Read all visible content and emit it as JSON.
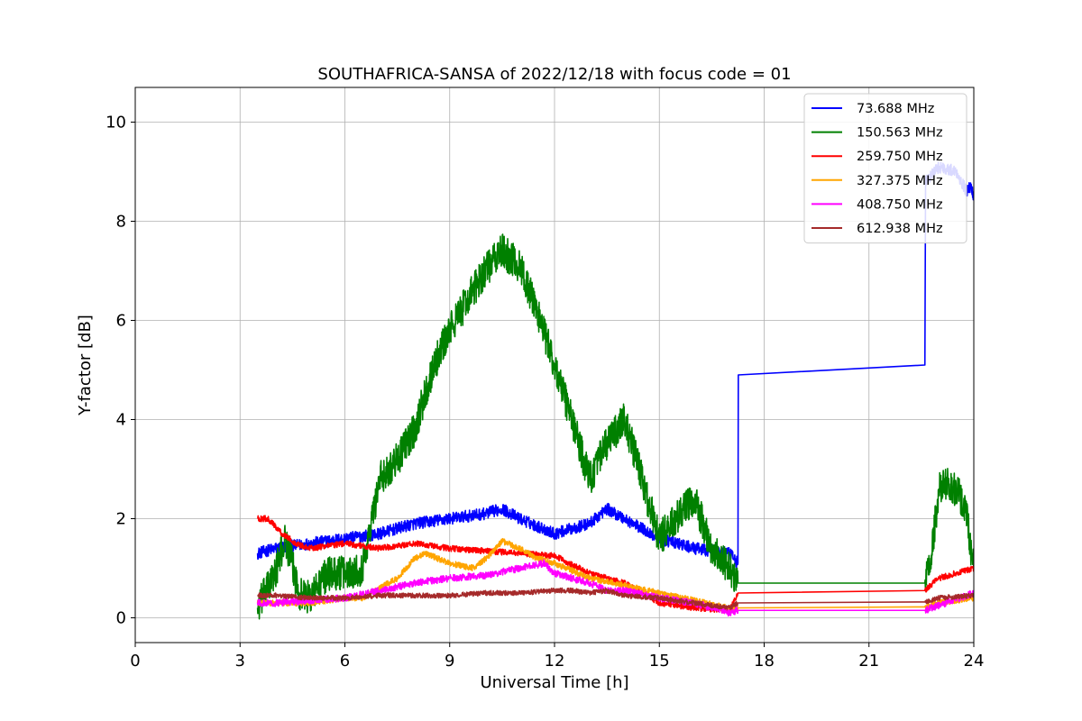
{
  "chart_data": {
    "type": "line",
    "title": "SOUTHAFRICA-SANSA of 2022/12/18 with focus code = 01",
    "xlabel": "Universal Time [h]",
    "ylabel": "Y-factor [dB]",
    "xlim": [
      0,
      24
    ],
    "ylim": [
      -0.5,
      10.7
    ],
    "xticks": [
      0,
      3,
      6,
      9,
      12,
      15,
      18,
      21,
      24
    ],
    "yticks": [
      0,
      2,
      4,
      6,
      8,
      10
    ],
    "grid": true,
    "legend_position": "top-right",
    "series": [
      {
        "name": " 73.688 MHz",
        "color": "#0000ff",
        "noise": 0.12,
        "x": [
          3.5,
          4.0,
          5.0,
          6.0,
          7.0,
          8.0,
          9.0,
          10.0,
          10.5,
          11.0,
          12.0,
          13.0,
          13.5,
          14.0,
          15.0,
          16.0,
          17.0,
          17.25,
          17.26,
          22.6,
          22.62,
          23.0,
          23.5,
          23.8,
          23.9,
          24.0
        ],
        "y": [
          1.3,
          1.4,
          1.5,
          1.6,
          1.7,
          1.9,
          2.0,
          2.1,
          2.2,
          2.0,
          1.7,
          1.9,
          2.2,
          2.0,
          1.6,
          1.4,
          1.3,
          1.1,
          4.9,
          5.1,
          8.8,
          9.1,
          9.0,
          8.6,
          8.7,
          8.5
        ]
      },
      {
        "name": "150.563 MHz",
        "color": "#008000",
        "noise": 0.35,
        "x": [
          3.5,
          4.0,
          4.3,
          4.7,
          5.0,
          5.5,
          6.0,
          6.5,
          7.0,
          7.5,
          8.0,
          8.5,
          9.0,
          9.5,
          10.0,
          10.5,
          11.0,
          11.5,
          12.0,
          12.5,
          13.0,
          13.5,
          14.0,
          14.3,
          14.7,
          15.0,
          15.5,
          16.0,
          16.5,
          17.0,
          17.25,
          22.6,
          22.8,
          23.0,
          23.3,
          23.6,
          23.8,
          24.0
        ],
        "y": [
          0.2,
          0.9,
          1.6,
          0.5,
          0.4,
          0.9,
          0.9,
          1.0,
          2.8,
          3.2,
          3.8,
          5.0,
          5.8,
          6.4,
          7.0,
          7.4,
          7.1,
          6.2,
          5.1,
          4.0,
          2.8,
          3.5,
          4.0,
          3.3,
          2.3,
          1.6,
          2.0,
          2.4,
          1.4,
          1.0,
          0.7,
          0.7,
          1.3,
          2.6,
          2.7,
          2.5,
          2.0,
          1.0
        ]
      },
      {
        "name": "259.750 MHz",
        "color": "#ff0000",
        "noise": 0.06,
        "x": [
          3.5,
          3.8,
          4.2,
          4.6,
          5.0,
          6.0,
          7.0,
          8.0,
          9.0,
          10.0,
          11.0,
          12.0,
          13.0,
          14.0,
          15.0,
          16.0,
          17.0,
          17.25,
          22.6,
          23.0,
          23.5,
          24.0
        ],
        "y": [
          2.0,
          2.0,
          1.7,
          1.5,
          1.4,
          1.5,
          1.4,
          1.5,
          1.4,
          1.35,
          1.3,
          1.25,
          0.9,
          0.7,
          0.3,
          0.2,
          0.15,
          0.5,
          0.55,
          0.8,
          0.9,
          1.0
        ]
      },
      {
        "name": "327.375 MHz",
        "color": "#ffa500",
        "noise": 0.06,
        "x": [
          3.5,
          4.0,
          5.0,
          6.0,
          6.5,
          7.0,
          7.5,
          8.0,
          8.3,
          9.0,
          9.7,
          10.2,
          10.5,
          11.0,
          11.5,
          12.0,
          13.0,
          14.0,
          15.0,
          16.0,
          17.0,
          17.25,
          22.6,
          23.0,
          24.0
        ],
        "y": [
          0.3,
          0.3,
          0.3,
          0.4,
          0.4,
          0.6,
          0.8,
          1.2,
          1.3,
          1.1,
          1.0,
          1.3,
          1.55,
          1.4,
          1.2,
          1.1,
          0.8,
          0.65,
          0.5,
          0.35,
          0.2,
          0.2,
          0.22,
          0.3,
          0.4
        ]
      },
      {
        "name": "408.750 MHz",
        "color": "#ff00ff",
        "noise": 0.07,
        "x": [
          3.5,
          4.0,
          5.0,
          6.0,
          7.0,
          8.0,
          9.0,
          10.0,
          11.0,
          11.7,
          12.0,
          12.5,
          13.0,
          13.5,
          14.0,
          15.0,
          16.0,
          17.0,
          17.25,
          22.6,
          23.0,
          24.0
        ],
        "y": [
          0.3,
          0.3,
          0.35,
          0.4,
          0.55,
          0.7,
          0.8,
          0.85,
          1.0,
          1.1,
          0.9,
          0.8,
          0.7,
          0.55,
          0.55,
          0.4,
          0.3,
          0.1,
          0.15,
          0.15,
          0.25,
          0.5
        ]
      },
      {
        "name": "612.938 MHz",
        "color": "#a52a2a",
        "noise": 0.05,
        "x": [
          3.5,
          4.0,
          5.0,
          6.0,
          7.0,
          8.0,
          9.0,
          10.0,
          11.0,
          12.0,
          12.5,
          13.0,
          13.5,
          14.0,
          15.0,
          16.0,
          17.0,
          17.25,
          22.6,
          23.0,
          24.0
        ],
        "y": [
          0.45,
          0.45,
          0.4,
          0.4,
          0.45,
          0.45,
          0.45,
          0.5,
          0.5,
          0.55,
          0.55,
          0.5,
          0.55,
          0.45,
          0.4,
          0.3,
          0.2,
          0.3,
          0.32,
          0.4,
          0.45
        ]
      }
    ]
  }
}
